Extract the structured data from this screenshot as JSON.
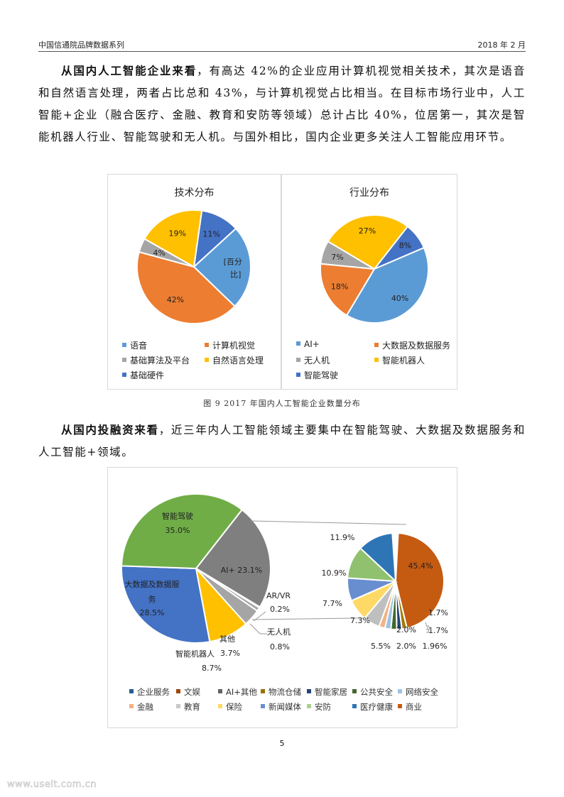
{
  "header": {
    "left": "中国信通院品牌数据系列",
    "right": "2018 年 2 月"
  },
  "paragraph1": {
    "bold": "从国内人工智能企业来看",
    "text": "，有高达 42%的企业应用计算机视觉相关技术，其次是语音和自然语言处理，两者占比总和 43%，与计算机视觉占比相当。在目标市场行业中，人工智能+企业（融合医疗、金融、教育和安防等领域）总计占比 40%，位居第一，其次是智能机器人行业、智能驾驶和无人机。与国外相比，国内企业更多关注人工智能应用环节。"
  },
  "figure_caption": "图 9 2017 年国内人工智能企业数量分布",
  "paragraph2": {
    "bold": "从国内投融资来看",
    "text": "，近三年内人工智能领域主要集中在智能驾驶、大数据及数据服务和人工智能+领域。"
  },
  "page_number": "5",
  "watermark": "www.useit.com.cn",
  "chart_data": [
    {
      "type": "pie",
      "title": "技术分布",
      "categories": [
        "语音",
        "计算机视觉",
        "基础算法及平台",
        "自然语言处理",
        "基础硬件"
      ],
      "values": [
        24,
        42,
        4,
        19,
        11
      ],
      "labels": [
        "[百分比]",
        "42%",
        "4%",
        "19%",
        "11%"
      ],
      "colors": [
        "#5b9bd5",
        "#ed7d31",
        "#a5a5a5",
        "#ffc000",
        "#4472c4"
      ],
      "legend_position": "bottom"
    },
    {
      "type": "pie",
      "title": "行业分布",
      "categories": [
        "AI+",
        "大数据及数据服务",
        "无人机",
        "智能机器人",
        "智能驾驶"
      ],
      "values": [
        40,
        18,
        7,
        27,
        8
      ],
      "labels": [
        "40%",
        "18%",
        "7%",
        "27%",
        "8%"
      ],
      "colors": [
        "#5b9bd5",
        "#ed7d31",
        "#a5a5a5",
        "#ffc000",
        "#4472c4"
      ],
      "legend_position": "bottom"
    },
    {
      "type": "pie",
      "title": "",
      "subtype": "pie-of-pie",
      "main": {
        "categories": [
          "智能驾驶",
          "AI+",
          "AR/VR",
          "无人机",
          "其他",
          "智能机器人",
          "大数据及数据服务"
        ],
        "values": [
          35.0,
          23.1,
          0.2,
          0.8,
          3.7,
          8.7,
          28.5
        ],
        "labels": [
          "35.0%",
          "23.1%",
          "0.2%",
          "0.8%",
          "3.7%",
          "8.7%",
          "28.5%"
        ],
        "colors": [
          "#70ad47",
          "#7f7f7f",
          "#ed7d31",
          "#a5a5a5",
          "#a5a5a5",
          "#ffc000",
          "#4472c4"
        ]
      },
      "secondary": {
        "categories": [
          "商业",
          "物流仓储",
          "智能家居",
          "公共安全",
          "网络安全",
          "金融",
          "教育",
          "保险",
          "新闻媒体",
          "安防",
          "医疗健康"
        ],
        "values": [
          45.4,
          1.7,
          1.7,
          1.96,
          2.0,
          2.0,
          5.5,
          7.3,
          7.7,
          10.9,
          11.9
        ],
        "labels": [
          "45.4%",
          "1.7%",
          "1.7%",
          "1.96%",
          "2.0%",
          "2.0%",
          "5.5%",
          "7.3%",
          "7.7%",
          "10.9%",
          "11.9%"
        ],
        "colors": [
          "#c55a11",
          "#9e7c0a",
          "#264478",
          "#43682b",
          "#9dc3e6",
          "#f4b183",
          "#bfbfbf",
          "#ffd966",
          "#698ed0",
          "#8fc16e",
          "#2e75b6"
        ]
      },
      "legend": [
        {
          "label": "企业服务",
          "color": "#255e91"
        },
        {
          "label": "文娱",
          "color": "#9e480e"
        },
        {
          "label": "AI+其他",
          "color": "#636363"
        },
        {
          "label": "物流仓储",
          "color": "#997300"
        },
        {
          "label": "智能家居",
          "color": "#264478"
        },
        {
          "label": "公共安全",
          "color": "#43682b"
        },
        {
          "label": "网络安全",
          "color": "#9dc3e6"
        },
        {
          "label": "金融",
          "color": "#f4b183"
        },
        {
          "label": "教育",
          "color": "#c9c9c9"
        },
        {
          "label": "保险",
          "color": "#ffd966"
        },
        {
          "label": "新闻媒体",
          "color": "#698ed0"
        },
        {
          "label": "安防",
          "color": "#a9d18e"
        },
        {
          "label": "医疗健康",
          "color": "#2e75b6"
        },
        {
          "label": "商业",
          "color": "#c55a11"
        }
      ],
      "legend_position": "bottom"
    }
  ]
}
